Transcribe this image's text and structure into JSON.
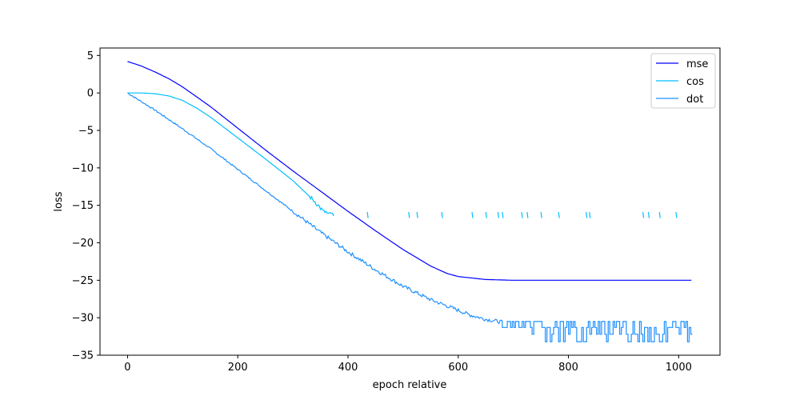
{
  "chart_data": {
    "type": "line",
    "title": "",
    "xlabel": "epoch relative",
    "ylabel": "loss",
    "xlim": [
      -50,
      1075
    ],
    "ylim": [
      -35,
      6
    ],
    "xticks": [
      0,
      200,
      400,
      600,
      800,
      1000
    ],
    "yticks": [
      5,
      0,
      -5,
      -10,
      -15,
      -20,
      -25,
      -30,
      -35
    ],
    "grid": false,
    "legend": {
      "position": "top-right"
    },
    "series": [
      {
        "name": "mse",
        "color": "#0000ff",
        "x": [
          0,
          25,
          50,
          75,
          100,
          150,
          200,
          250,
          300,
          350,
          400,
          450,
          500,
          550,
          580,
          600,
          650,
          700,
          800,
          900,
          1000,
          1023
        ],
        "y": [
          4.2,
          3.6,
          2.8,
          1.9,
          0.8,
          -1.8,
          -4.7,
          -7.6,
          -10.4,
          -13.1,
          -15.8,
          -18.4,
          -20.9,
          -23.1,
          -24.1,
          -24.5,
          -24.9,
          -25.0,
          -25.0,
          -25.0,
          -25.0,
          -25.0
        ]
      },
      {
        "name": "cos",
        "color": "#00bfff",
        "x": [
          0,
          25,
          50,
          75,
          100,
          125,
          150,
          200,
          250,
          300,
          340,
          355,
          360,
          365,
          370,
          375
        ],
        "y": [
          0.0,
          0.0,
          -0.1,
          -0.4,
          -1.0,
          -2.0,
          -3.2,
          -6.0,
          -8.8,
          -11.7,
          -14.5,
          -15.8,
          -15.9,
          -16.3,
          -16.0,
          -16.7
        ],
        "spikes_x": [
          435,
          510,
          525,
          570,
          625,
          650,
          672,
          680,
          715,
          725,
          750,
          782,
          832,
          838,
          935,
          945,
          965,
          995
        ],
        "spikes_top": -15.9,
        "spikes_bottom": -16.7
      },
      {
        "name": "dot",
        "color": "#1e90ff",
        "x": [
          0,
          50,
          100,
          150,
          200,
          250,
          300,
          350,
          400,
          450,
          500,
          550,
          600,
          620,
          650,
          680
        ],
        "y": [
          0.0,
          -2.3,
          -4.8,
          -7.4,
          -10.2,
          -13.0,
          -15.8,
          -18.6,
          -21.2,
          -23.6,
          -25.8,
          -27.6,
          -29.0,
          -29.6,
          -30.2,
          -30.6
        ],
        "noise_start": 680,
        "noise_end": 1023,
        "noise_levels": [
          -30.5,
          -31.3,
          -32.2,
          -33.2
        ]
      }
    ]
  }
}
